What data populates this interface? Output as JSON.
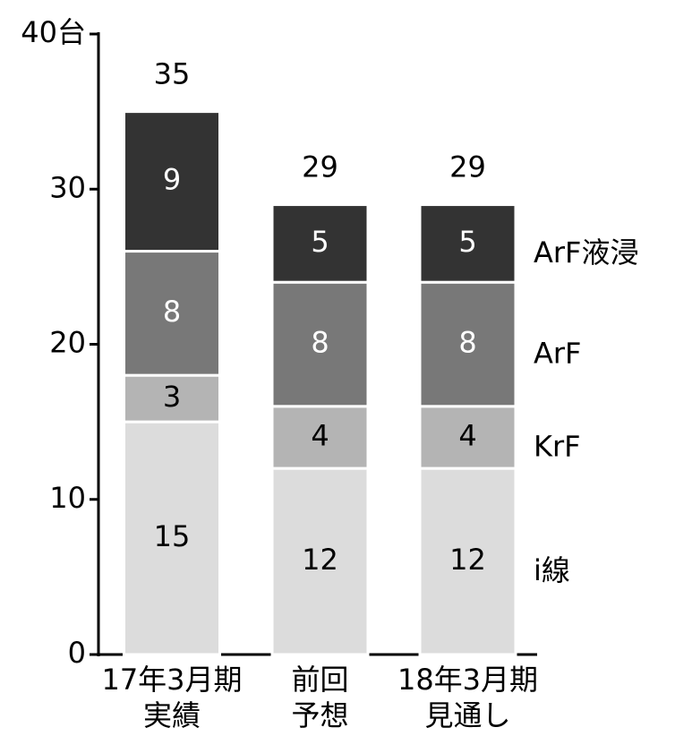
{
  "chart_data": {
    "type": "stacked_bar",
    "categories": [
      [
        "17年3月期",
        "実績"
      ],
      [
        "前回",
        "予想"
      ],
      [
        "18年3月期",
        "見通し"
      ]
    ],
    "series": [
      {
        "name": "i線",
        "color": "#dcdcdc",
        "label_color": "#000000",
        "values": [
          15,
          12,
          12
        ]
      },
      {
        "name": "KrF",
        "color": "#b4b4b4",
        "label_color": "#000000",
        "values": [
          3,
          4,
          4
        ]
      },
      {
        "name": "ArF",
        "color": "#787878",
        "label_color": "#ffffff",
        "values": [
          8,
          8,
          8
        ]
      },
      {
        "name": "ArF液浸",
        "color": "#333333",
        "label_color": "#ffffff",
        "values": [
          9,
          5,
          5
        ]
      }
    ],
    "totals": [
      35,
      29,
      29
    ],
    "ylim": [
      0,
      40
    ],
    "yticks": [
      0,
      10,
      20,
      30,
      {
        "value": 40,
        "label": "40台"
      }
    ]
  }
}
